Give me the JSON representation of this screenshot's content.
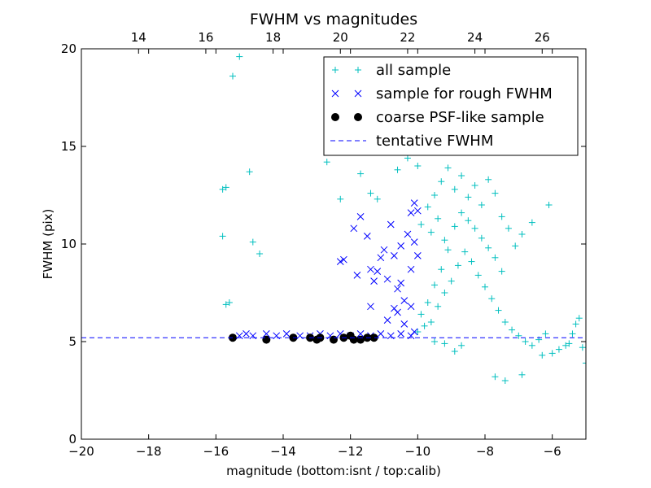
{
  "chart_data": {
    "type": "scatter",
    "title": "FWHM vs magnitudes",
    "xlabel": "magnitude (bottom:isnt / top:calib)",
    "ylabel": "FWHM (pix)",
    "xlim": [
      -20,
      -5
    ],
    "ylim": [
      0,
      20
    ],
    "x_ticks": [
      -20,
      -18,
      -16,
      -14,
      -12,
      -10,
      -8,
      -6
    ],
    "y_ticks": [
      0,
      5,
      10,
      15,
      20
    ],
    "top_axis": {
      "ticks": [
        14,
        16,
        18,
        20,
        22,
        24,
        26
      ],
      "offset_from_bottom": 32.3
    },
    "grid": false,
    "legend_position": "top-right",
    "series": [
      {
        "name": "all sample",
        "marker": "plus",
        "color": "#00bfbf",
        "points": [
          [
            -15.5,
            18.6
          ],
          [
            -15.3,
            19.6
          ],
          [
            -15.8,
            12.8
          ],
          [
            -15.7,
            12.9
          ],
          [
            -15.0,
            13.7
          ],
          [
            -15.8,
            10.4
          ],
          [
            -14.9,
            10.1
          ],
          [
            -14.7,
            9.5
          ],
          [
            -15.7,
            6.9
          ],
          [
            -15.6,
            7.0
          ],
          [
            -12.3,
            12.3
          ],
          [
            -12.7,
            14.2
          ],
          [
            -11.4,
            12.6
          ],
          [
            -11.2,
            12.3
          ],
          [
            -10.6,
            13.8
          ],
          [
            -10.3,
            14.4
          ],
          [
            -10.0,
            14.0
          ],
          [
            -12.0,
            14.7
          ],
          [
            -11.7,
            13.6
          ],
          [
            -9.7,
            11.9
          ],
          [
            -9.5,
            12.5
          ],
          [
            -9.3,
            13.2
          ],
          [
            -9.1,
            13.9
          ],
          [
            -8.9,
            12.8
          ],
          [
            -8.7,
            13.5
          ],
          [
            -8.5,
            12.4
          ],
          [
            -8.3,
            13.0
          ],
          [
            -8.1,
            12.0
          ],
          [
            -7.9,
            13.3
          ],
          [
            -7.7,
            12.6
          ],
          [
            -6.1,
            12.0
          ],
          [
            -6.6,
            11.1
          ],
          [
            -6.9,
            10.5
          ],
          [
            -7.1,
            9.9
          ],
          [
            -7.3,
            10.8
          ],
          [
            -7.5,
            11.4
          ],
          [
            -9.9,
            11.0
          ],
          [
            -9.6,
            10.6
          ],
          [
            -9.4,
            11.3
          ],
          [
            -9.2,
            10.2
          ],
          [
            -5.3,
            5.9
          ],
          [
            -5.2,
            6.2
          ],
          [
            -5.4,
            5.4
          ],
          [
            -5.6,
            4.8
          ],
          [
            -5.8,
            4.6
          ],
          [
            -5.5,
            4.9
          ],
          [
            -6.0,
            4.4
          ],
          [
            -6.3,
            4.3
          ],
          [
            -5.1,
            4.7
          ],
          [
            -5.0,
            3.9
          ],
          [
            -6.9,
            3.3
          ],
          [
            -7.4,
            3.0
          ],
          [
            -7.7,
            3.2
          ],
          [
            -8.7,
            4.8
          ],
          [
            -8.9,
            4.5
          ],
          [
            -9.2,
            4.9
          ],
          [
            -9.5,
            5.0
          ],
          [
            -10.0,
            5.5
          ],
          [
            -9.8,
            5.8
          ],
          [
            -9.6,
            6.0
          ],
          [
            -9.4,
            6.8
          ],
          [
            -9.2,
            7.5
          ],
          [
            -9.0,
            8.1
          ],
          [
            -8.8,
            8.9
          ],
          [
            -8.6,
            9.6
          ],
          [
            -8.4,
            9.1
          ],
          [
            -8.2,
            8.4
          ],
          [
            -8.0,
            7.8
          ],
          [
            -7.8,
            7.2
          ],
          [
            -7.6,
            6.6
          ],
          [
            -7.4,
            6.0
          ],
          [
            -7.2,
            5.6
          ],
          [
            -7.0,
            5.3
          ],
          [
            -6.8,
            5.0
          ],
          [
            -6.6,
            4.8
          ],
          [
            -6.4,
            5.1
          ],
          [
            -6.2,
            5.4
          ],
          [
            -7.5,
            8.6
          ],
          [
            -7.7,
            9.3
          ],
          [
            -7.9,
            9.8
          ],
          [
            -8.1,
            10.3
          ],
          [
            -8.3,
            10.8
          ],
          [
            -8.5,
            11.2
          ],
          [
            -8.7,
            11.6
          ],
          [
            -8.9,
            10.9
          ],
          [
            -9.1,
            9.7
          ],
          [
            -9.3,
            8.7
          ],
          [
            -9.5,
            7.9
          ],
          [
            -9.7,
            7.0
          ],
          [
            -9.9,
            6.4
          ]
        ]
      },
      {
        "name": "sample for rough FWHM",
        "marker": "x",
        "color": "#0000ff",
        "points": [
          [
            -15.3,
            5.3
          ],
          [
            -15.1,
            5.4
          ],
          [
            -14.9,
            5.3
          ],
          [
            -14.5,
            5.4
          ],
          [
            -14.2,
            5.3
          ],
          [
            -13.9,
            5.4
          ],
          [
            -13.5,
            5.3
          ],
          [
            -13.2,
            5.3
          ],
          [
            -12.9,
            5.4
          ],
          [
            -12.6,
            5.3
          ],
          [
            -12.3,
            5.4
          ],
          [
            -12.0,
            5.3
          ],
          [
            -11.7,
            5.4
          ],
          [
            -11.4,
            5.3
          ],
          [
            -11.1,
            5.4
          ],
          [
            -10.8,
            5.3
          ],
          [
            -10.5,
            5.4
          ],
          [
            -10.2,
            5.3
          ],
          [
            -10.1,
            5.5
          ],
          [
            -12.3,
            9.1
          ],
          [
            -12.2,
            9.2
          ],
          [
            -11.9,
            10.8
          ],
          [
            -11.8,
            8.4
          ],
          [
            -11.7,
            11.4
          ],
          [
            -11.5,
            10.4
          ],
          [
            -11.4,
            8.7
          ],
          [
            -11.3,
            8.1
          ],
          [
            -11.2,
            8.6
          ],
          [
            -11.1,
            9.3
          ],
          [
            -11.0,
            9.7
          ],
          [
            -10.9,
            8.2
          ],
          [
            -10.8,
            11.0
          ],
          [
            -10.7,
            9.4
          ],
          [
            -10.6,
            7.7
          ],
          [
            -10.5,
            9.9
          ],
          [
            -10.4,
            7.1
          ],
          [
            -10.3,
            10.5
          ],
          [
            -10.2,
            11.6
          ],
          [
            -10.1,
            12.1
          ],
          [
            -10.0,
            9.4
          ],
          [
            -10.0,
            11.7
          ],
          [
            -10.2,
            6.8
          ],
          [
            -10.4,
            5.9
          ],
          [
            -10.6,
            6.5
          ],
          [
            -11.4,
            6.8
          ],
          [
            -10.7,
            6.7
          ],
          [
            -10.9,
            6.1
          ],
          [
            -10.1,
            10.1
          ],
          [
            -10.2,
            8.7
          ],
          [
            -10.5,
            8.0
          ]
        ]
      },
      {
        "name": "coarse PSF-like sample",
        "marker": "circle",
        "color": "#000000",
        "points": [
          [
            -15.5,
            5.2
          ],
          [
            -14.5,
            5.1
          ],
          [
            -13.7,
            5.2
          ],
          [
            -13.2,
            5.2
          ],
          [
            -12.9,
            5.2
          ],
          [
            -12.5,
            5.1
          ],
          [
            -12.2,
            5.2
          ],
          [
            -11.9,
            5.1
          ],
          [
            -11.7,
            5.1
          ],
          [
            -11.5,
            5.2
          ],
          [
            -11.3,
            5.2
          ],
          [
            -12.0,
            5.3
          ],
          [
            -13.0,
            5.1
          ]
        ]
      },
      {
        "name": "tentative FWHM",
        "marker": "dashed-line",
        "color": "#0000ff",
        "y": 5.2
      }
    ]
  }
}
